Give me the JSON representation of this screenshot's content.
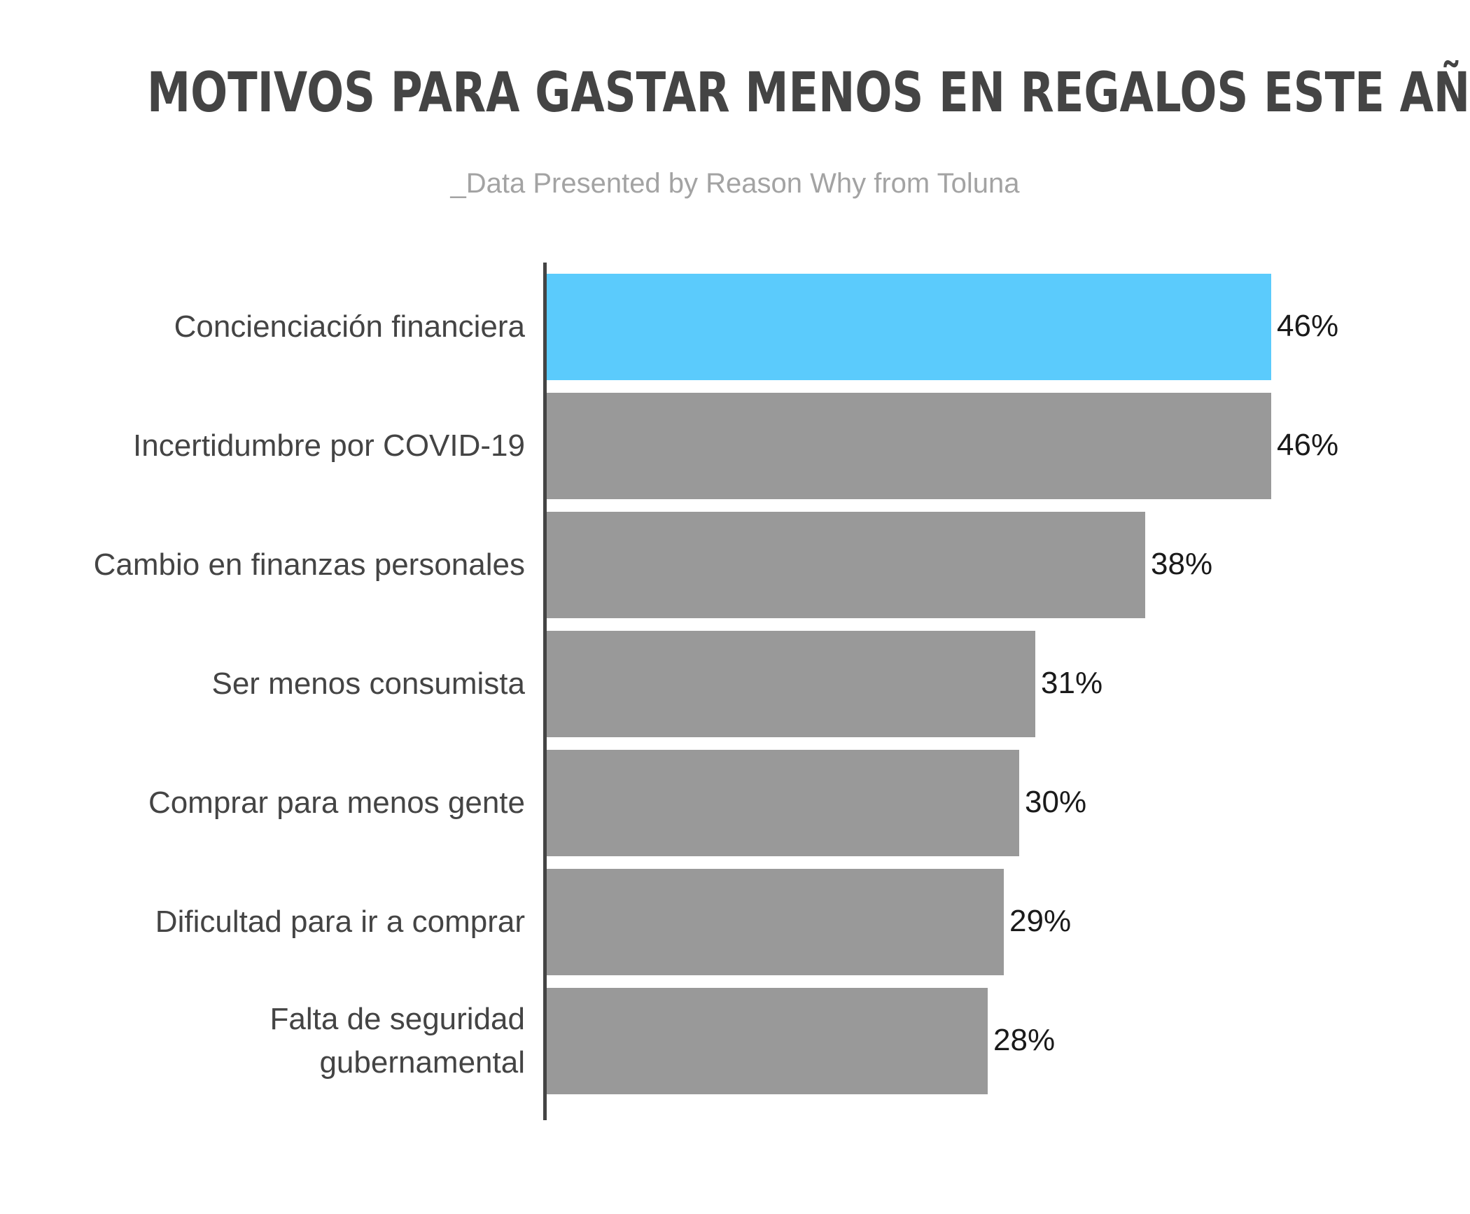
{
  "chart_data": {
    "type": "bar",
    "orientation": "horizontal",
    "title": "MOTIVOS PARA GASTAR MENOS EN REGALOS ESTE AÑO",
    "subtitle": "_Data Presented by Reason Why from Toluna",
    "categories": [
      "Concienciación financiera",
      "Incertidumbre por COVID-19",
      "Cambio en finanzas personales",
      "Ser menos consumista",
      "Comprar para menos gente",
      "Dificultad para ir a comprar",
      "Falta de seguridad gubernamental"
    ],
    "values": [
      46,
      46,
      38,
      31,
      30,
      29,
      28
    ],
    "value_labels": [
      "46%",
      "46%",
      "38%",
      "31%",
      "30%",
      "29%",
      "28%"
    ],
    "unit": "%",
    "xlim": [
      0,
      46
    ],
    "grid": false,
    "legend": "none",
    "colors": {
      "highlight": "#5bcbfc",
      "default": "#999999",
      "axis": "#444444",
      "title": "#444444",
      "subtitle": "#a3a3a3"
    },
    "highlight_index": 0
  }
}
